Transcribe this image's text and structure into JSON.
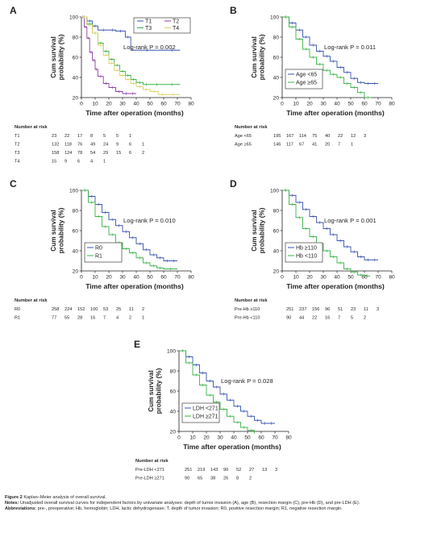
{
  "figure": {
    "colors": {
      "t1": "#3a55b0",
      "t2": "#8e3fa6",
      "t3": "#3cb34a",
      "t4": "#d9d266",
      "blue": "#3a55b0",
      "green": "#3cb34a",
      "axis": "#231f20"
    },
    "caption": {
      "title_label": "Figure 2",
      "title_text": "Kaplan–Meier analysis of overall survival.",
      "notes_label": "Notes:",
      "notes_text": "Unadjusted overall survival curves for independent factors by univariate analyses: depth of tumor invasion (A), age (B), resection margin (C), pre-Hb (D), and pre-LDH (E).",
      "abbr_label": "Abbreviations:",
      "abbr_text": "pre-, preoperative; Hb, hemoglobin; LDH, lactic dehydrogenase; T, depth of tumor invasion; R0, positive resection margin; R1, negative resection margin."
    }
  },
  "chart_data": [
    {
      "panel": "A",
      "type": "line",
      "ylabel": [
        "Cum survival",
        "probability (%)"
      ],
      "xlabel": "Time after operation (months)",
      "xlim": [
        0,
        80
      ],
      "ylim": [
        20,
        100
      ],
      "xticks": [
        0,
        10,
        20,
        30,
        40,
        50,
        60,
        70,
        80
      ],
      "yticks": [
        20,
        40,
        60,
        80,
        100
      ],
      "annotation": "Log-rank P = 0.002",
      "legend_position": "top-right",
      "legend": [
        {
          "label": "T1",
          "color_key": "t1"
        },
        {
          "label": "T2",
          "color_key": "t2"
        },
        {
          "label": "T3",
          "color_key": "t3"
        },
        {
          "label": "T4",
          "color_key": "t4"
        }
      ],
      "series": [
        {
          "name": "T1",
          "color_key": "t1",
          "x": [
            0,
            4,
            8,
            12,
            20,
            25,
            32,
            36,
            60,
            72
          ],
          "y": [
            100,
            96,
            91,
            87,
            87,
            86,
            80,
            67,
            67,
            67
          ]
        },
        {
          "name": "T2",
          "color_key": "t2",
          "x": [
            0,
            2,
            4,
            6,
            8,
            10,
            12,
            16,
            20,
            25,
            30,
            35,
            40
          ],
          "y": [
            100,
            90,
            79,
            65,
            57,
            48,
            41,
            34,
            30,
            26,
            24,
            24,
            24
          ]
        },
        {
          "name": "T3",
          "color_key": "t3",
          "x": [
            0,
            4,
            8,
            12,
            16,
            20,
            24,
            28,
            32,
            36,
            40,
            45,
            50,
            60,
            72
          ],
          "y": [
            100,
            93,
            84,
            74,
            66,
            58,
            52,
            46,
            42,
            38,
            35,
            33,
            33,
            33,
            33
          ]
        },
        {
          "name": "T4",
          "color_key": "t4",
          "x": [
            0,
            4,
            8,
            12,
            16,
            20,
            24,
            28,
            32,
            36,
            40,
            45,
            50,
            56,
            62,
            72
          ],
          "y": [
            100,
            92,
            84,
            72,
            62,
            54,
            47,
            42,
            38,
            34,
            31,
            28,
            26,
            23,
            23,
            23
          ]
        }
      ],
      "risk_table": {
        "title": "Number at risk",
        "rows": [
          {
            "label": "T1",
            "values": [
              "23",
              "22",
              "17",
              "8",
              "5",
              "5",
              "1",
              ""
            ]
          },
          {
            "label": "T2",
            "values": [
              "132",
              "118",
              "76",
              "49",
              "24",
              "9",
              "6",
              "1"
            ]
          },
          {
            "label": "T3",
            "values": [
              "158",
              "124",
              "78",
              "54",
              "29",
              "15",
              "6",
              "2"
            ]
          },
          {
            "label": "T4",
            "values": [
              "15",
              "9",
              "6",
              "4",
              "1",
              "",
              "",
              ""
            ]
          }
        ]
      }
    },
    {
      "panel": "B",
      "type": "line",
      "ylabel": [
        "Cum survival",
        "probability (%)"
      ],
      "xlabel": "Time after operation (months)",
      "xlim": [
        0,
        80
      ],
      "ylim": [
        20,
        100
      ],
      "xticks": [
        0,
        10,
        20,
        30,
        40,
        50,
        60,
        70,
        80
      ],
      "yticks": [
        20,
        40,
        60,
        80,
        100
      ],
      "annotation": "Log-rank P = 0.011",
      "legend_position": "bottom-left",
      "legend": [
        {
          "label": "Age <65",
          "color_key": "blue"
        },
        {
          "label": "Age ≥65",
          "color_key": "green"
        }
      ],
      "series": [
        {
          "name": "Age <65",
          "color_key": "blue",
          "x": [
            0,
            5,
            10,
            15,
            20,
            25,
            30,
            35,
            40,
            45,
            50,
            55,
            60,
            65,
            70
          ],
          "y": [
            100,
            94,
            87,
            80,
            72,
            66,
            61,
            56,
            50,
            45,
            39,
            35,
            34,
            34,
            34
          ]
        },
        {
          "name": "Age ≥65",
          "color_key": "green",
          "x": [
            0,
            5,
            10,
            15,
            20,
            25,
            30,
            35,
            40,
            45,
            50,
            55,
            60,
            65
          ],
          "y": [
            100,
            90,
            78,
            68,
            60,
            53,
            47,
            43,
            40,
            34,
            30,
            25,
            20,
            20
          ]
        }
      ],
      "risk_table": {
        "title": "Number at risk",
        "rows": [
          {
            "label": "Age <65",
            "values": [
              "195",
              "167",
              "114",
              "75",
              "40",
              "22",
              "12",
              "3"
            ]
          },
          {
            "label": "Age ≥65",
            "values": [
              "146",
              "117",
              "67",
              "41",
              "20",
              "7",
              "1",
              ""
            ]
          }
        ]
      }
    },
    {
      "panel": "C",
      "type": "line",
      "ylabel": [
        "Cum survival",
        "probability (%)"
      ],
      "xlabel": "Time after operation (months)",
      "xlim": [
        0,
        80
      ],
      "ylim": [
        20,
        100
      ],
      "xticks": [
        0,
        10,
        20,
        30,
        40,
        50,
        60,
        70,
        80
      ],
      "yticks": [
        20,
        40,
        60,
        80,
        100
      ],
      "annotation": "Log-rank P = 0.010",
      "legend_position": "bottom-left",
      "legend": [
        {
          "label": "R0",
          "color_key": "blue"
        },
        {
          "label": "R1",
          "color_key": "green"
        }
      ],
      "series": [
        {
          "name": "R0",
          "color_key": "blue",
          "x": [
            0,
            5,
            10,
            15,
            20,
            25,
            30,
            35,
            40,
            45,
            50,
            55,
            60,
            65,
            70
          ],
          "y": [
            100,
            94,
            86,
            78,
            71,
            65,
            59,
            53,
            47,
            41,
            36,
            33,
            30,
            30,
            30
          ]
        },
        {
          "name": "R1",
          "color_key": "green",
          "x": [
            0,
            5,
            10,
            15,
            20,
            25,
            30,
            35,
            40,
            45,
            50,
            55,
            60,
            70
          ],
          "y": [
            100,
            88,
            74,
            64,
            56,
            48,
            42,
            38,
            33,
            28,
            25,
            23,
            22,
            22
          ]
        }
      ],
      "risk_table": {
        "title": "Number at risk",
        "rows": [
          {
            "label": "R0",
            "values": [
              "258",
              "224",
              "152",
              "100",
              "53",
              "25",
              "11",
              "2"
            ]
          },
          {
            "label": "R1",
            "values": [
              "77",
              "55",
              "28",
              "16",
              "7",
              "4",
              "2",
              "1"
            ]
          }
        ]
      }
    },
    {
      "panel": "D",
      "type": "line",
      "ylabel": [
        "Cum survival",
        "probability (%)"
      ],
      "xlabel": "Time after operation (months)",
      "xlim": [
        0,
        80
      ],
      "ylim": [
        20,
        100
      ],
      "xticks": [
        0,
        10,
        20,
        30,
        40,
        50,
        60,
        70,
        80
      ],
      "yticks": [
        20,
        40,
        60,
        80,
        100
      ],
      "annotation": "Log-rank P = 0.001",
      "legend_position": "bottom-left",
      "legend": [
        {
          "label": "Hb ≥110",
          "color_key": "blue"
        },
        {
          "label": "Hb <110",
          "color_key": "green"
        }
      ],
      "series": [
        {
          "name": "Hb ≥110",
          "color_key": "blue",
          "x": [
            0,
            5,
            10,
            15,
            20,
            25,
            30,
            35,
            40,
            45,
            50,
            55,
            60,
            65,
            70
          ],
          "y": [
            100,
            95,
            88,
            81,
            74,
            68,
            62,
            56,
            50,
            44,
            39,
            34,
            31,
            31,
            31
          ]
        },
        {
          "name": "Hb <110",
          "color_key": "green",
          "x": [
            0,
            5,
            10,
            15,
            20,
            25,
            30,
            35,
            40,
            45,
            50,
            55,
            60,
            64
          ],
          "y": [
            100,
            86,
            73,
            62,
            54,
            47,
            40,
            34,
            28,
            22,
            19,
            16,
            15,
            15
          ]
        }
      ],
      "risk_table": {
        "title": "Number at risk",
        "rows": [
          {
            "label": "Pre-Hb ≥110",
            "values": [
              "251",
              "237",
              "156",
              "96",
              "51",
              "23",
              "11",
              "3"
            ]
          },
          {
            "label": "Pre-Hb <110",
            "values": [
              "90",
              "44",
              "22",
              "16",
              "7",
              "5",
              "2",
              ""
            ]
          }
        ]
      }
    },
    {
      "panel": "E",
      "type": "line",
      "ylabel": [
        "Cum survival",
        "probability (%)"
      ],
      "xlabel": "Time after operation (months)",
      "xlim": [
        0,
        80
      ],
      "ylim": [
        20,
        100
      ],
      "xticks": [
        0,
        10,
        20,
        30,
        40,
        50,
        60,
        70,
        80
      ],
      "yticks": [
        20,
        40,
        60,
        80,
        100
      ],
      "annotation": "Log-rank P = 0.028",
      "legend_position": "bottom-left",
      "legend": [
        {
          "label": "LDH <271",
          "color_key": "blue"
        },
        {
          "label": "LDH ≥271",
          "color_key": "green"
        }
      ],
      "series": [
        {
          "name": "LDH <271",
          "color_key": "blue",
          "x": [
            0,
            5,
            10,
            15,
            20,
            25,
            30,
            35,
            40,
            45,
            50,
            55,
            60,
            65,
            70
          ],
          "y": [
            100,
            94,
            86,
            78,
            70,
            64,
            57,
            51,
            45,
            40,
            35,
            31,
            28,
            28,
            28
          ]
        },
        {
          "name": "LDH ≥271",
          "color_key": "green",
          "x": [
            0,
            5,
            10,
            15,
            20,
            25,
            30,
            35,
            40,
            45,
            50,
            55
          ],
          "y": [
            100,
            88,
            76,
            66,
            56,
            49,
            42,
            35,
            29,
            24,
            21,
            18
          ]
        }
      ],
      "risk_table": {
        "title": "Number at risk",
        "rows": [
          {
            "label": "Pre-LDH <271",
            "values": [
              "251",
              "219",
              "143",
              "90",
              "52",
              "27",
              "13",
              "3"
            ]
          },
          {
            "label": "Pre-LDH ≥271",
            "values": [
              "90",
              "65",
              "38",
              "26",
              "8",
              "2",
              "",
              ""
            ]
          }
        ]
      }
    }
  ]
}
